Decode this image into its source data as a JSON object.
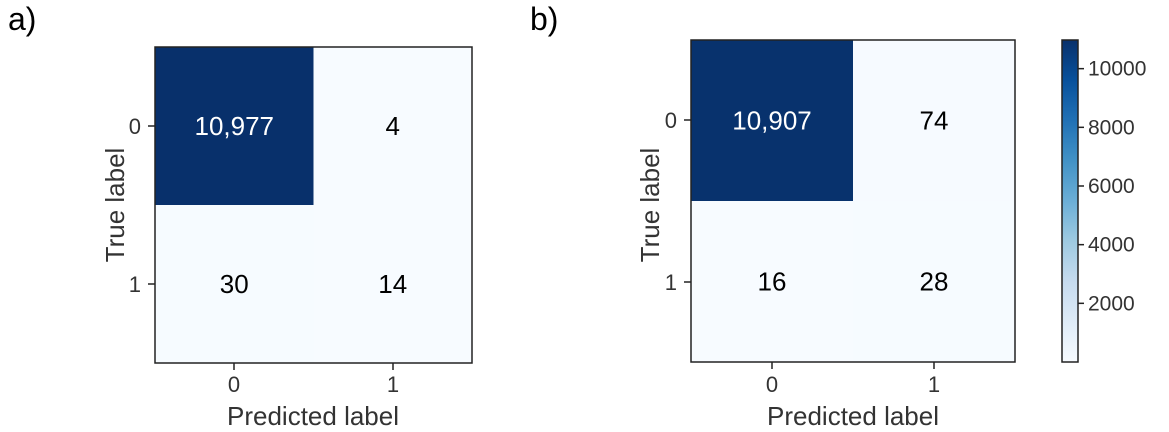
{
  "chart_data": [
    {
      "type": "heatmap",
      "panel_label": "a)",
      "xlabel": "Predicted label",
      "ylabel": "True label",
      "x_categories": [
        "0",
        "1"
      ],
      "y_categories": [
        "0",
        "1"
      ],
      "values": [
        [
          10977,
          4
        ],
        [
          30,
          14
        ]
      ],
      "value_labels": [
        [
          "10,977",
          "4"
        ],
        [
          "30",
          "14"
        ]
      ]
    },
    {
      "type": "heatmap",
      "panel_label": "b)",
      "xlabel": "Predicted label",
      "ylabel": "True label",
      "x_categories": [
        "0",
        "1"
      ],
      "y_categories": [
        "0",
        "1"
      ],
      "values": [
        [
          10907,
          74
        ],
        [
          16,
          28
        ]
      ],
      "value_labels": [
        [
          "10,907",
          "74"
        ],
        [
          "16",
          "28"
        ]
      ]
    }
  ],
  "colorbar": {
    "colormap": "Blues",
    "range": [
      0,
      10977
    ],
    "ticks": [
      2000,
      4000,
      6000,
      8000,
      10000
    ],
    "tick_labels": [
      "2000",
      "4000",
      "6000",
      "8000",
      "10000"
    ]
  }
}
